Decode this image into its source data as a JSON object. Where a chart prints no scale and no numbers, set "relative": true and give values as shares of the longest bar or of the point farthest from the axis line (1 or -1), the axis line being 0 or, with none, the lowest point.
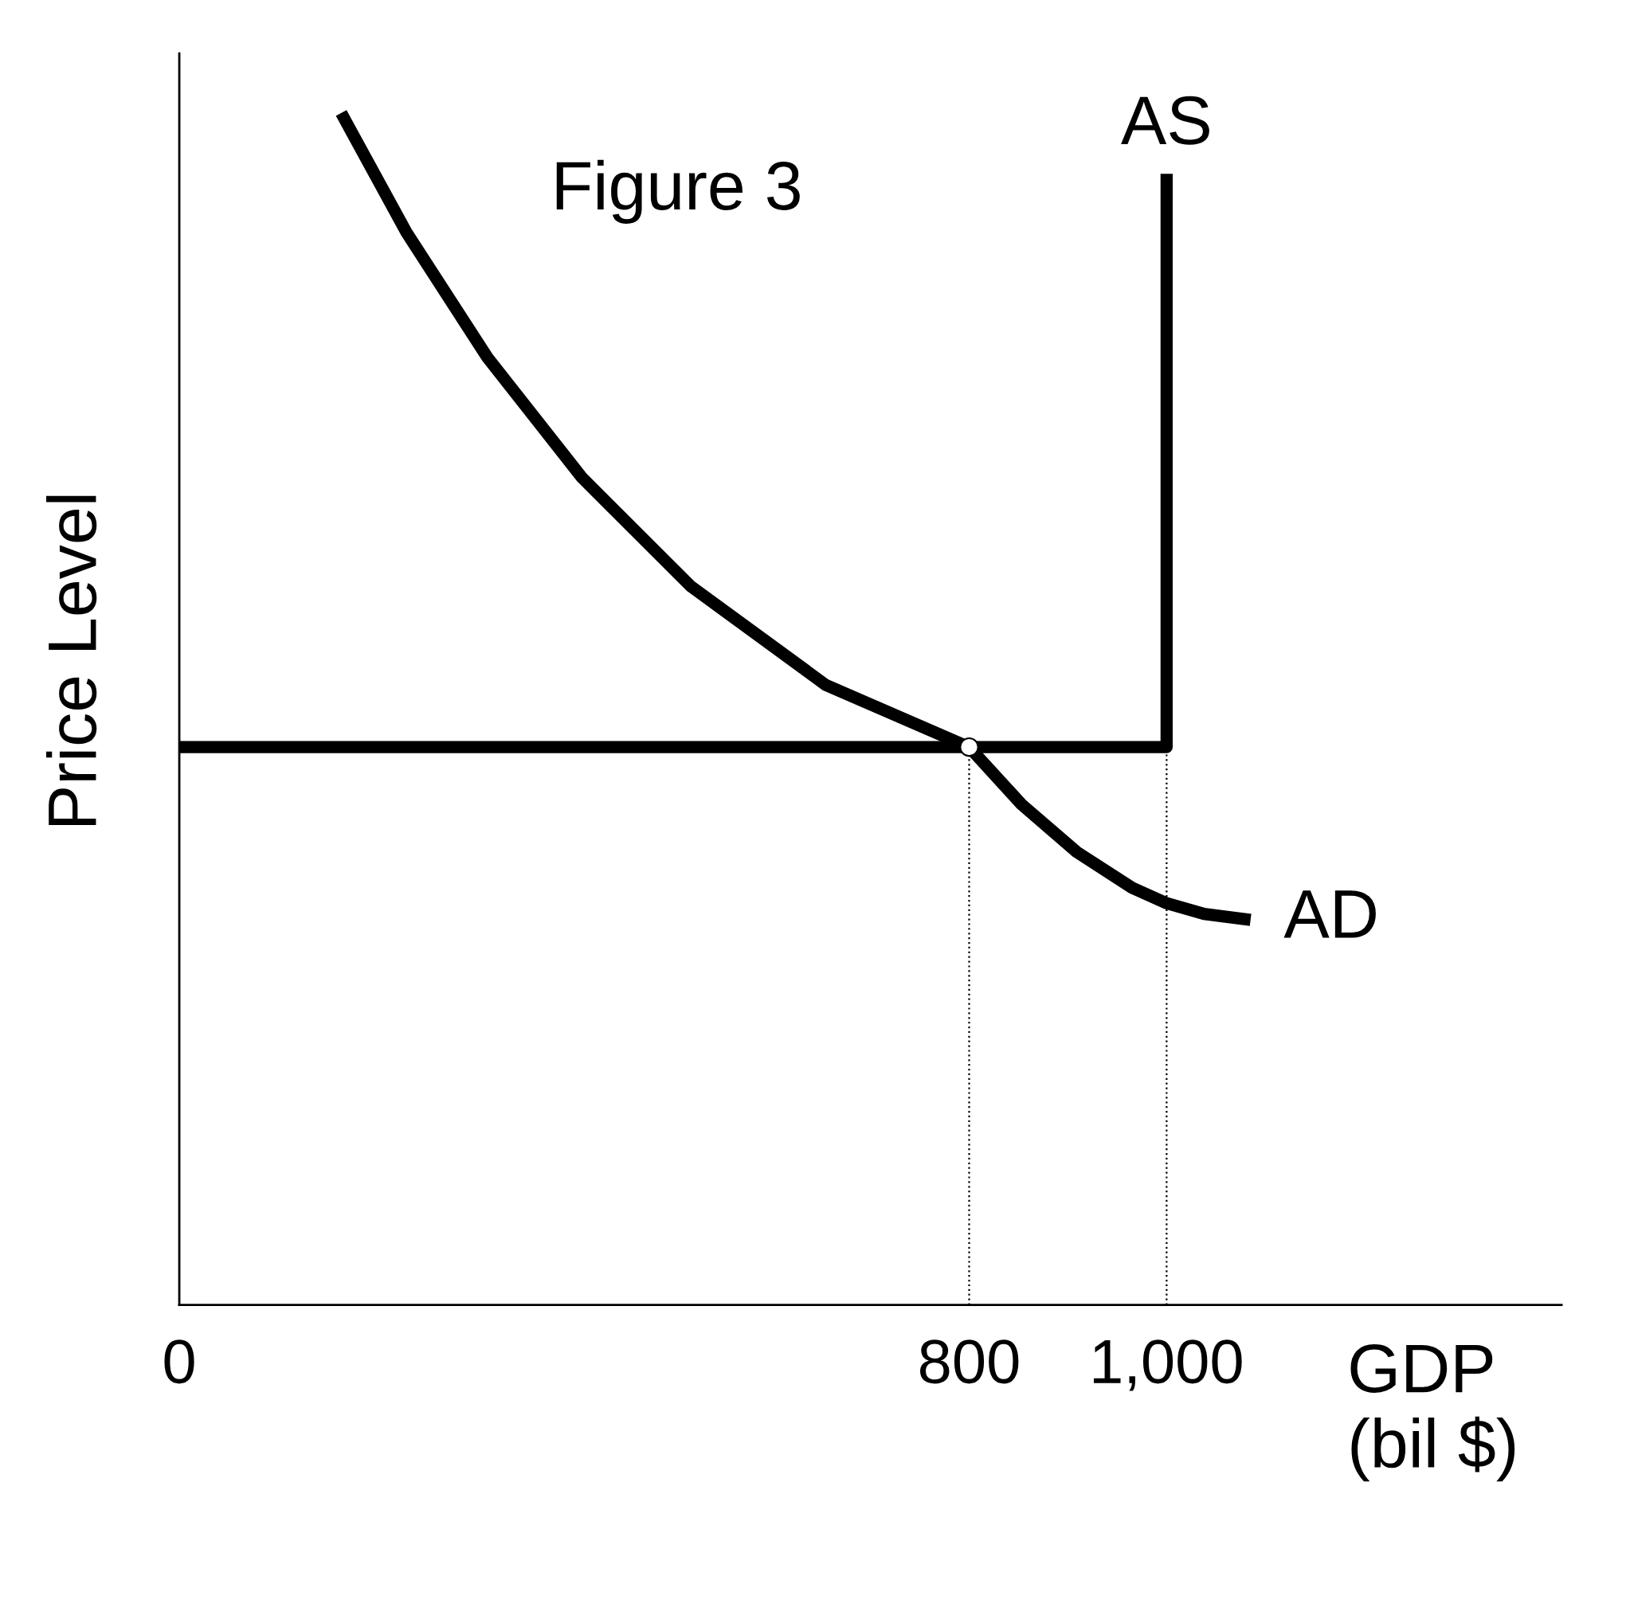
{
  "chart_data": {
    "type": "line",
    "title": "Figure 3",
    "xlabel": "GDP\n(bil $)",
    "ylabel": "Price Level",
    "relative": true,
    "xlim": [
      0,
      1400
    ],
    "xticks": [
      {
        "value": 0,
        "label": "0"
      },
      {
        "value": 800,
        "label": "800"
      },
      {
        "value": 1000,
        "label": "1,000"
      }
    ],
    "tick_labels": "x",
    "grid": false,
    "legend": false,
    "series": [
      {
        "name": "AD",
        "color": "#000000",
        "x": [
          164,
          230,
          312,
          408,
          518,
          655,
          800,
          853,
          909,
          965,
          1000,
          1038,
          1085
        ],
        "values": [
          1.0,
          0.9,
          0.795,
          0.694,
          0.603,
          0.52,
          0.468,
          0.42,
          0.38,
          0.35,
          0.337,
          0.328,
          0.323
        ]
      },
      {
        "name": "AS",
        "color": "#000000",
        "x": [
          0,
          1000,
          1000
        ],
        "values": [
          0.468,
          0.468,
          0.949
        ]
      },
      {
        "color": "#000000",
        "x": [
          800,
          800
        ],
        "values": [
          0,
          0.468
        ],
        "line_style": "dotted"
      },
      {
        "color": "#000000",
        "x": [
          1000,
          1000
        ],
        "values": [
          0,
          0.468
        ],
        "line_style": "dotted"
      },
      {
        "type": "scatter",
        "color": "#ffffff",
        "x": [
          800
        ],
        "values": [
          0.468
        ],
        "marker": "circle"
      }
    ]
  }
}
